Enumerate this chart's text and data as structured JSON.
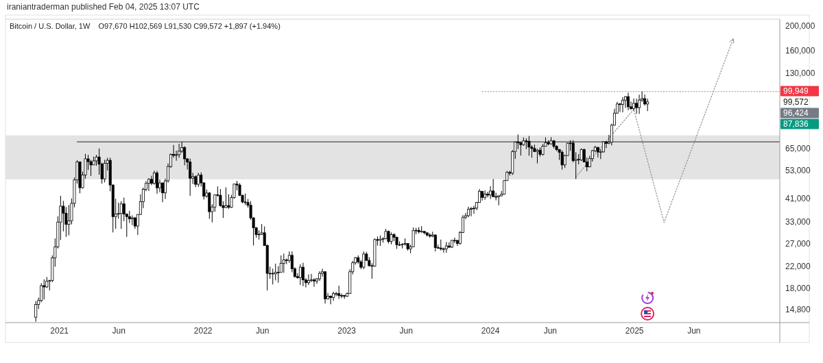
{
  "chart_data": {
    "type": "candlestick",
    "title": "Bitcoin / U.S. Dollar, 1W",
    "subtitle": "O97,670 H102,569 L91,530 C99,572 +1,897 (+1.94%)",
    "annotations": [
      "iraniantraderman published Feb 04, 2025 13:07 UTC",
      "99,949",
      "99,572",
      "96,424",
      "87,836"
    ],
    "log": true,
    "xlim": [
      "2020-08-17",
      "2026-01-05"
    ],
    "ylim": [
      13100,
      213000
    ],
    "xticks": [
      {
        "value": "2021-01-01",
        "label": "2021"
      },
      {
        "value": "2021-06-01",
        "label": "Jun"
      },
      {
        "value": "2022-01-01",
        "label": "2022"
      },
      {
        "value": "2022-06-01",
        "label": "Jun"
      },
      {
        "value": "2023-01-01",
        "label": "2023"
      },
      {
        "value": "2023-06-01",
        "label": "Jun"
      },
      {
        "value": "2024-01-01",
        "label": "2024"
      },
      {
        "value": "2024-06-01",
        "label": "Jun"
      },
      {
        "value": "2025-01-01",
        "label": "2025"
      },
      {
        "value": "2025-06-01",
        "label": "Jun"
      }
    ],
    "yticks": [
      {
        "value": 14800,
        "label": "14,800"
      },
      {
        "value": 18000,
        "label": "18,000"
      },
      {
        "value": 22000,
        "label": "22,000"
      },
      {
        "value": 27000,
        "label": "27,000"
      },
      {
        "value": 33000,
        "label": "33,000"
      },
      {
        "value": 41000,
        "label": "41,000"
      },
      {
        "value": 53000,
        "label": "53,000"
      },
      {
        "value": 65000,
        "label": "65,000"
      },
      {
        "value": 130000,
        "label": "130,000"
      },
      {
        "value": 160000,
        "label": "160,000"
      },
      {
        "value": 200000,
        "label": "200,000"
      }
    ],
    "x": [
      "2020-11-02",
      "2020-11-09",
      "2020-11-16",
      "2020-11-23",
      "2020-11-30",
      "2020-12-07",
      "2020-12-14",
      "2020-12-21",
      "2020-12-28",
      "2021-01-04",
      "2021-01-11",
      "2021-01-18",
      "2021-01-25",
      "2021-02-01",
      "2021-02-08",
      "2021-02-15",
      "2021-02-22",
      "2021-03-01",
      "2021-03-08",
      "2021-03-15",
      "2021-03-22",
      "2021-03-29",
      "2021-04-05",
      "2021-04-12",
      "2021-04-19",
      "2021-04-26",
      "2021-05-03",
      "2021-05-10",
      "2021-05-17",
      "2021-05-24",
      "2021-05-31",
      "2021-06-07",
      "2021-06-14",
      "2021-06-21",
      "2021-06-28",
      "2021-07-05",
      "2021-07-12",
      "2021-07-19",
      "2021-07-26",
      "2021-08-02",
      "2021-08-09",
      "2021-08-16",
      "2021-08-23",
      "2021-08-30",
      "2021-09-06",
      "2021-09-13",
      "2021-09-20",
      "2021-09-27",
      "2021-10-04",
      "2021-10-11",
      "2021-10-18",
      "2021-10-25",
      "2021-11-01",
      "2021-11-08",
      "2021-11-15",
      "2021-11-22",
      "2021-11-29",
      "2021-12-06",
      "2021-12-13",
      "2021-12-20",
      "2021-12-27",
      "2022-01-03",
      "2022-01-10",
      "2022-01-17",
      "2022-01-24",
      "2022-01-31",
      "2022-02-07",
      "2022-02-14",
      "2022-02-21",
      "2022-02-28",
      "2022-03-07",
      "2022-03-14",
      "2022-03-21",
      "2022-03-28",
      "2022-04-04",
      "2022-04-11",
      "2022-04-18",
      "2022-04-25",
      "2022-05-02",
      "2022-05-09",
      "2022-05-16",
      "2022-05-23",
      "2022-05-30",
      "2022-06-06",
      "2022-06-13",
      "2022-06-20",
      "2022-06-27",
      "2022-07-04",
      "2022-07-11",
      "2022-07-18",
      "2022-07-25",
      "2022-08-01",
      "2022-08-08",
      "2022-08-15",
      "2022-08-22",
      "2022-08-29",
      "2022-09-05",
      "2022-09-12",
      "2022-09-19",
      "2022-09-26",
      "2022-10-03",
      "2022-10-10",
      "2022-10-17",
      "2022-10-24",
      "2022-10-31",
      "2022-11-07",
      "2022-11-14",
      "2022-11-21",
      "2022-11-28",
      "2022-12-05",
      "2022-12-12",
      "2022-12-19",
      "2022-12-26",
      "2023-01-02",
      "2023-01-09",
      "2023-01-16",
      "2023-01-23",
      "2023-01-30",
      "2023-02-06",
      "2023-02-13",
      "2023-02-20",
      "2023-02-27",
      "2023-03-06",
      "2023-03-13",
      "2023-03-20",
      "2023-03-27",
      "2023-04-03",
      "2023-04-10",
      "2023-04-17",
      "2023-04-24",
      "2023-05-01",
      "2023-05-08",
      "2023-05-15",
      "2023-05-22",
      "2023-05-29",
      "2023-06-05",
      "2023-06-12",
      "2023-06-19",
      "2023-06-26",
      "2023-07-03",
      "2023-07-10",
      "2023-07-17",
      "2023-07-24",
      "2023-07-31",
      "2023-08-07",
      "2023-08-14",
      "2023-08-21",
      "2023-08-28",
      "2023-09-04",
      "2023-09-11",
      "2023-09-18",
      "2023-09-25",
      "2023-10-02",
      "2023-10-09",
      "2023-10-16",
      "2023-10-23",
      "2023-10-30",
      "2023-11-06",
      "2023-11-13",
      "2023-11-20",
      "2023-11-27",
      "2023-12-04",
      "2023-12-11",
      "2023-12-18",
      "2023-12-25",
      "2024-01-01",
      "2024-01-08",
      "2024-01-15",
      "2024-01-22",
      "2024-01-29",
      "2024-02-05",
      "2024-02-12",
      "2024-02-19",
      "2024-02-26",
      "2024-03-04",
      "2024-03-11",
      "2024-03-18",
      "2024-03-25",
      "2024-04-01",
      "2024-04-08",
      "2024-04-15",
      "2024-04-22",
      "2024-04-29",
      "2024-05-06",
      "2024-05-13",
      "2024-05-20",
      "2024-05-27",
      "2024-06-03",
      "2024-06-10",
      "2024-06-17",
      "2024-06-24",
      "2024-07-01",
      "2024-07-08",
      "2024-07-15",
      "2024-07-22",
      "2024-07-29",
      "2024-08-05",
      "2024-08-12",
      "2024-08-19",
      "2024-08-26",
      "2024-09-02",
      "2024-09-09",
      "2024-09-16",
      "2024-09-23",
      "2024-09-30",
      "2024-10-07",
      "2024-10-14",
      "2024-10-21",
      "2024-10-28",
      "2024-11-04",
      "2024-11-11",
      "2024-11-18",
      "2024-11-25",
      "2024-12-02",
      "2024-12-09",
      "2024-12-16",
      "2024-12-23",
      "2024-12-30",
      "2025-01-06",
      "2025-01-13",
      "2025-01-20",
      "2025-01-27",
      "2025-02-03"
    ],
    "ohlc": [
      [
        13760,
        15970,
        13200,
        15480
      ],
      [
        15480,
        16490,
        14840,
        16050
      ],
      [
        16050,
        18820,
        15800,
        18400
      ],
      [
        18400,
        19480,
        16200,
        18180
      ],
      [
        18180,
        19920,
        18000,
        19170
      ],
      [
        19170,
        19420,
        17600,
        19270
      ],
      [
        19270,
        24300,
        19000,
        23740
      ],
      [
        23740,
        28400,
        21900,
        26270
      ],
      [
        26270,
        34800,
        25900,
        33000
      ],
      [
        33000,
        42000,
        28000,
        38200
      ],
      [
        38200,
        40100,
        30300,
        35800
      ],
      [
        35800,
        37900,
        28800,
        32300
      ],
      [
        32300,
        38600,
        29200,
        33400
      ],
      [
        33400,
        41000,
        32300,
        39200
      ],
      [
        39200,
        49700,
        37800,
        48600
      ],
      [
        48600,
        58350,
        47000,
        57400
      ],
      [
        57400,
        57500,
        43000,
        45250
      ],
      [
        45250,
        52500,
        44900,
        50900
      ],
      [
        50900,
        61800,
        49200,
        59000
      ],
      [
        59000,
        61200,
        53300,
        57500
      ],
      [
        57500,
        58400,
        50400,
        55800
      ],
      [
        55800,
        60200,
        55800,
        57900
      ],
      [
        57900,
        61200,
        55400,
        60000
      ],
      [
        60000,
        64900,
        51000,
        56200
      ],
      [
        56200,
        57000,
        47000,
        49100
      ],
      [
        49100,
        58500,
        47500,
        56600
      ],
      [
        56600,
        59600,
        53000,
        58200
      ],
      [
        58200,
        59600,
        43800,
        46400
      ],
      [
        46400,
        46600,
        30000,
        34700
      ],
      [
        34700,
        40900,
        31000,
        35500
      ],
      [
        35500,
        39500,
        34000,
        35700
      ],
      [
        35700,
        40000,
        31000,
        39000
      ],
      [
        39000,
        41300,
        33300,
        35500
      ],
      [
        35500,
        35700,
        28800,
        34700
      ],
      [
        34700,
        36600,
        32700,
        34000
      ],
      [
        34000,
        35100,
        32100,
        34300
      ],
      [
        34300,
        34600,
        31000,
        31800
      ],
      [
        31800,
        35400,
        29300,
        35400
      ],
      [
        35400,
        42600,
        35200,
        39800
      ],
      [
        39800,
        45300,
        37500,
        44600
      ],
      [
        44600,
        48100,
        43800,
        47100
      ],
      [
        47100,
        49400,
        43900,
        48900
      ],
      [
        48900,
        50500,
        46300,
        47100
      ],
      [
        47100,
        52900,
        46500,
        51800
      ],
      [
        51800,
        52800,
        42800,
        45200
      ],
      [
        45200,
        48800,
        43400,
        47300
      ],
      [
        47300,
        47400,
        39600,
        43200
      ],
      [
        43200,
        49200,
        40800,
        48200
      ],
      [
        48200,
        56600,
        47400,
        55000
      ],
      [
        55000,
        62000,
        54300,
        61500
      ],
      [
        61500,
        67000,
        59600,
        60900
      ],
      [
        60900,
        63700,
        58000,
        61300
      ],
      [
        61300,
        67800,
        59500,
        63300
      ],
      [
        63300,
        69000,
        62300,
        65500
      ],
      [
        65500,
        66300,
        55600,
        59000
      ],
      [
        59000,
        59300,
        53500,
        57300
      ],
      [
        57300,
        59100,
        42000,
        49400
      ],
      [
        49400,
        51900,
        46800,
        50100
      ],
      [
        50100,
        50700,
        45500,
        46700
      ],
      [
        46700,
        51900,
        45600,
        50800
      ],
      [
        50800,
        52100,
        45700,
        47300
      ],
      [
        47300,
        47600,
        40600,
        41900
      ],
      [
        41900,
        44500,
        41300,
        43100
      ],
      [
        43100,
        43500,
        34000,
        36300
      ],
      [
        36300,
        38900,
        32900,
        37900
      ],
      [
        37900,
        42500,
        36300,
        42400
      ],
      [
        42400,
        45800,
        41700,
        42200
      ],
      [
        42200,
        44700,
        38000,
        38400
      ],
      [
        38400,
        40000,
        34300,
        37700
      ],
      [
        37700,
        45400,
        37500,
        38400
      ],
      [
        38400,
        42600,
        37200,
        37800
      ],
      [
        37800,
        42400,
        37600,
        41300
      ],
      [
        41300,
        47000,
        40900,
        46800
      ],
      [
        46800,
        48200,
        44200,
        46400
      ],
      [
        46400,
        47200,
        41900,
        42200
      ],
      [
        42200,
        42400,
        39200,
        39700
      ],
      [
        39700,
        42900,
        38600,
        39500
      ],
      [
        39500,
        40800,
        37700,
        38500
      ],
      [
        38500,
        40000,
        33700,
        34300
      ],
      [
        34300,
        34500,
        26600,
        31300
      ],
      [
        31300,
        31500,
        28600,
        29400
      ],
      [
        29400,
        30600,
        28100,
        29500
      ],
      [
        29500,
        32400,
        29300,
        29900
      ],
      [
        29900,
        31700,
        26600,
        26600
      ],
      [
        26600,
        26900,
        17600,
        20600
      ],
      [
        20600,
        21900,
        19600,
        20600
      ],
      [
        20600,
        21500,
        18600,
        20500
      ],
      [
        20500,
        22500,
        19300,
        20800
      ],
      [
        20800,
        22000,
        18900,
        20800
      ],
      [
        20800,
        24300,
        20800,
        22600
      ],
      [
        22600,
        24700,
        20700,
        23300
      ],
      [
        23300,
        23600,
        22400,
        23200
      ],
      [
        23200,
        25200,
        22700,
        24300
      ],
      [
        24300,
        25200,
        20800,
        21500
      ],
      [
        21500,
        21800,
        19800,
        20000
      ],
      [
        20000,
        20600,
        19600,
        19800
      ],
      [
        19800,
        22400,
        18500,
        21800
      ],
      [
        21800,
        22700,
        18300,
        19400
      ],
      [
        19400,
        19700,
        18100,
        18900
      ],
      [
        18900,
        20400,
        18500,
        19300
      ],
      [
        19300,
        20500,
        19000,
        19400
      ],
      [
        19400,
        19700,
        18200,
        19200
      ],
      [
        19200,
        19700,
        18700,
        19600
      ],
      [
        19600,
        21000,
        19200,
        20600
      ],
      [
        20600,
        21500,
        20000,
        20900
      ],
      [
        20900,
        21000,
        15600,
        16300
      ],
      [
        16300,
        17200,
        16200,
        16700
      ],
      [
        16700,
        16800,
        15500,
        16500
      ],
      [
        16500,
        17400,
        16000,
        17100
      ],
      [
        17100,
        17400,
        16700,
        17100
      ],
      [
        17100,
        18400,
        16300,
        16800
      ],
      [
        16800,
        17100,
        16400,
        16800
      ],
      [
        16800,
        16900,
        16300,
        16700
      ],
      [
        16700,
        17300,
        16600,
        17100
      ],
      [
        17100,
        21400,
        17100,
        20900
      ],
      [
        20900,
        23100,
        20400,
        22700
      ],
      [
        22700,
        23900,
        22300,
        23800
      ],
      [
        23800,
        24300,
        22500,
        22900
      ],
      [
        22900,
        23300,
        21400,
        21800
      ],
      [
        21800,
        25200,
        21400,
        24600
      ],
      [
        24600,
        25100,
        23100,
        23200
      ],
      [
        23200,
        23900,
        21900,
        22100
      ],
      [
        22100,
        22600,
        19600,
        22000
      ],
      [
        22000,
        28400,
        21900,
        28100
      ],
      [
        28100,
        28900,
        26600,
        27900
      ],
      [
        27900,
        29200,
        26500,
        28200
      ],
      [
        28200,
        28700,
        27300,
        28300
      ],
      [
        28300,
        31000,
        28200,
        30300
      ],
      [
        30300,
        30500,
        27100,
        27600
      ],
      [
        27600,
        30000,
        26900,
        29400
      ],
      [
        29400,
        29800,
        27700,
        28700
      ],
      [
        28700,
        28900,
        25800,
        26800
      ],
      [
        26800,
        27600,
        26500,
        26800
      ],
      [
        26800,
        27200,
        25900,
        26900
      ],
      [
        26900,
        28400,
        26600,
        27100
      ],
      [
        27100,
        27100,
        25400,
        25800
      ],
      [
        25800,
        26800,
        24800,
        26300
      ],
      [
        26300,
        31400,
        26200,
        30500
      ],
      [
        30500,
        31300,
        29500,
        30600
      ],
      [
        30600,
        31500,
        29700,
        30200
      ],
      [
        30200,
        31800,
        29900,
        30300
      ],
      [
        30300,
        30300,
        29500,
        29900
      ],
      [
        29900,
        30000,
        28900,
        29300
      ],
      [
        29300,
        29800,
        28600,
        29000
      ],
      [
        29000,
        30200,
        28700,
        29300
      ],
      [
        29300,
        29500,
        25200,
        26100
      ],
      [
        26100,
        26800,
        25800,
        26000
      ],
      [
        26000,
        28100,
        25400,
        25800
      ],
      [
        25800,
        26100,
        24900,
        25800
      ],
      [
        25800,
        27500,
        24900,
        26500
      ],
      [
        26500,
        27400,
        26000,
        26200
      ],
      [
        26200,
        28000,
        26000,
        27900
      ],
      [
        27900,
        28600,
        27200,
        27900
      ],
      [
        27900,
        27900,
        26500,
        27100
      ],
      [
        27100,
        30400,
        26800,
        30000
      ],
      [
        30000,
        35200,
        29800,
        34500
      ],
      [
        34500,
        35900,
        33900,
        35000
      ],
      [
        35000,
        38000,
        34500,
        37100
      ],
      [
        37100,
        37900,
        34800,
        37400
      ],
      [
        37400,
        38400,
        35600,
        37500
      ],
      [
        37500,
        39700,
        36800,
        39500
      ],
      [
        39500,
        44700,
        39500,
        43800
      ],
      [
        43800,
        43800,
        40200,
        41400
      ],
      [
        41400,
        44200,
        40500,
        42700
      ],
      [
        42700,
        43600,
        41400,
        42300
      ],
      [
        42300,
        45900,
        40800,
        43900
      ],
      [
        43900,
        49000,
        41500,
        41700
      ],
      [
        41700,
        43200,
        40300,
        41600
      ],
      [
        41600,
        42200,
        38500,
        42000
      ],
      [
        42000,
        43900,
        41800,
        42600
      ],
      [
        42600,
        48600,
        42500,
        48300
      ],
      [
        48300,
        52800,
        48300,
        52100
      ],
      [
        52100,
        52900,
        50600,
        51700
      ],
      [
        51700,
        64000,
        50900,
        63100
      ],
      [
        63100,
        69200,
        59000,
        68900
      ],
      [
        68900,
        73800,
        64600,
        68400
      ],
      [
        68400,
        68800,
        60800,
        67200
      ],
      [
        67200,
        71800,
        66500,
        69600
      ],
      [
        69600,
        71300,
        64500,
        69400
      ],
      [
        69400,
        72800,
        60700,
        65700
      ],
      [
        65700,
        66900,
        59600,
        64900
      ],
      [
        64900,
        67200,
        62800,
        63100
      ],
      [
        63100,
        64700,
        56600,
        63900
      ],
      [
        63900,
        65500,
        60200,
        61500
      ],
      [
        61500,
        67600,
        60800,
        66300
      ],
      [
        66300,
        71900,
        66100,
        68500
      ],
      [
        68500,
        70000,
        66800,
        67700
      ],
      [
        67700,
        72000,
        67300,
        69600
      ],
      [
        69600,
        70200,
        65000,
        66200
      ],
      [
        66200,
        66800,
        63400,
        64300
      ],
      [
        64300,
        64500,
        58400,
        62700
      ],
      [
        62700,
        63800,
        53500,
        55800
      ],
      [
        55800,
        61300,
        54300,
        60800
      ],
      [
        60800,
        68400,
        60700,
        68100
      ],
      [
        68100,
        70000,
        63500,
        68200
      ],
      [
        68200,
        70000,
        57100,
        58100
      ],
      [
        58100,
        62700,
        49000,
        58700
      ],
      [
        58700,
        61600,
        56100,
        58400
      ],
      [
        58400,
        65000,
        57800,
        64200
      ],
      [
        64200,
        64900,
        57200,
        57300
      ],
      [
        57300,
        59800,
        52600,
        54800
      ],
      [
        54800,
        60700,
        54600,
        59100
      ],
      [
        59100,
        64100,
        57500,
        63600
      ],
      [
        63600,
        66500,
        62700,
        65600
      ],
      [
        65600,
        65600,
        59800,
        62800
      ],
      [
        62800,
        64500,
        58900,
        62900
      ],
      [
        62900,
        69400,
        62500,
        69000
      ],
      [
        69000,
        69500,
        65100,
        68000
      ],
      [
        68000,
        73600,
        67500,
        68800
      ],
      [
        68800,
        81500,
        66800,
        80400
      ],
      [
        80400,
        93500,
        80200,
        89800
      ],
      [
        89800,
        99600,
        89400,
        97700
      ],
      [
        97700,
        98700,
        90800,
        97200
      ],
      [
        97200,
        104000,
        90500,
        101200
      ],
      [
        101200,
        105000,
        94200,
        104500
      ],
      [
        104500,
        108400,
        92200,
        95200
      ],
      [
        95200,
        99900,
        92500,
        93700
      ],
      [
        93700,
        102700,
        91800,
        98300
      ],
      [
        98300,
        102700,
        89300,
        94500
      ],
      [
        94500,
        106400,
        89200,
        101300
      ],
      [
        101300,
        109600,
        99500,
        102600
      ],
      [
        102600,
        106500,
        96200,
        97700
      ],
      [
        97670,
        102569,
        91530,
        99572
      ]
    ],
    "bands": [
      {
        "axis": "y",
        "from": 48900,
        "to": 73200,
        "color": "#e3e3e3"
      }
    ],
    "series": [
      {
        "type": "line",
        "x": [
          "2021-02-15",
          "2026-01-05"
        ],
        "values": [
          69000,
          69000
        ],
        "color": "#4a4a4a",
        "line_style": "solid"
      },
      {
        "type": "line",
        "x": [
          "2023-12-11",
          "2026-01-05"
        ],
        "values": [
          109600,
          109600
        ],
        "color": "#b0b0b0",
        "line_style": "dotted"
      },
      {
        "type": "line",
        "x": [
          "2024-08-05",
          "2024-12-30",
          "2025-03-17",
          "2025-09-08"
        ],
        "values": [
          50000,
          93000,
          32900,
          176700
        ],
        "color": "#8c8c8c",
        "line_style": "dotted"
      }
    ]
  }
}
